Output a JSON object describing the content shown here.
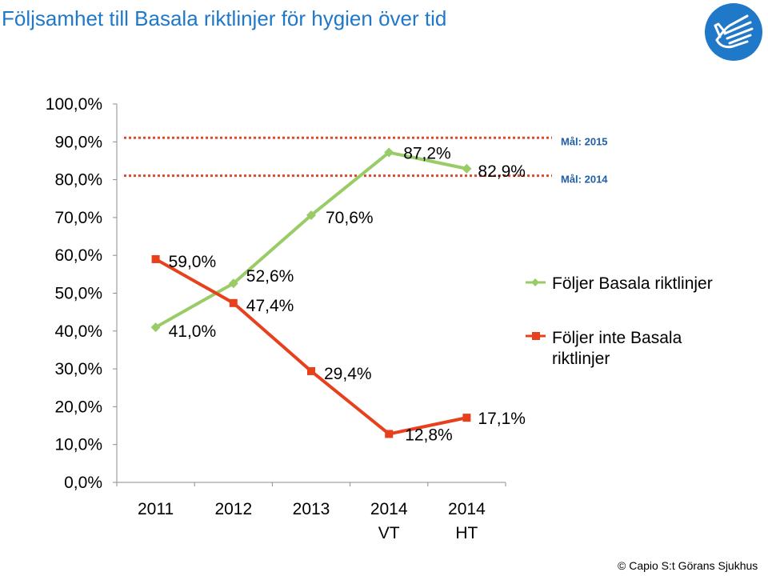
{
  "title": "Följsamhet till Basala riktlinjer för hygien över tid",
  "footer": "© Capio S:t Görans Sjukhus",
  "chart_data": {
    "type": "line",
    "categories": [
      "2011",
      "2012",
      "2013",
      "2014\nVT",
      "2014\nHT"
    ],
    "ylim": [
      0,
      100
    ],
    "yticks": [
      "0,0%",
      "10,0%",
      "20,0%",
      "30,0%",
      "40,0%",
      "50,0%",
      "60,0%",
      "70,0%",
      "80,0%",
      "90,0%",
      "100,0%"
    ],
    "grid": false,
    "legend_position": "right",
    "series": [
      {
        "name": "Följer Basala riktlinjer",
        "color": "#99cc66",
        "marker": "diamond",
        "values": [
          41.0,
          52.6,
          70.6,
          87.2,
          82.9
        ],
        "labels": [
          "41,0%",
          "52,6%",
          "70,6%",
          "87,2%",
          "82,9%"
        ]
      },
      {
        "name": "Följer inte Basala riktlinjer",
        "color": "#e8401c",
        "marker": "square",
        "values": [
          59.0,
          47.4,
          29.4,
          12.8,
          17.1
        ],
        "labels": [
          "59,0%",
          "47,4%",
          "29,4%",
          "12,8%",
          "17,1%"
        ]
      }
    ],
    "target_lines": [
      {
        "label": "Mål: 2015",
        "value": 90,
        "color": "#e04a2c"
      },
      {
        "label": "Mål: 2014",
        "value": 80,
        "color": "#e04a2c"
      }
    ]
  },
  "logo": {
    "icon": "hand-icon",
    "color": "#1f78c8"
  }
}
